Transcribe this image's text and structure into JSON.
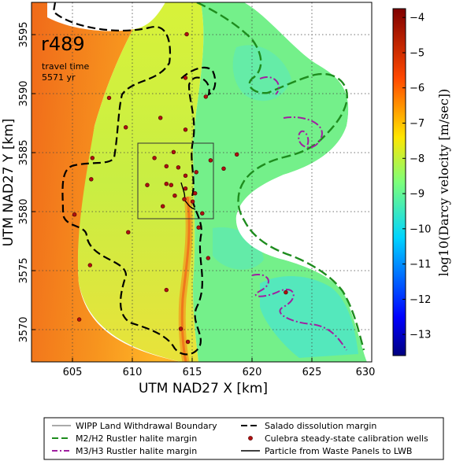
{
  "chart_data": {
    "type": "heatmap",
    "run_label": "r489",
    "annotation_line1": "travel time",
    "annotation_line2": "5571 yr",
    "xlabel": "UTM NAD27 X [km]",
    "ylabel": "UTM NAD27 Y [km]",
    "xlim": [
      601.5,
      630
    ],
    "ylim": [
      3566.5,
      3597
    ],
    "x_ticks": [
      605,
      610,
      615,
      620,
      625,
      630
    ],
    "y_ticks": [
      3570,
      3575,
      3580,
      3585,
      3590,
      3595
    ],
    "grid": true,
    "colorbar": {
      "label": "log10(Darcy velocity [m/sec])",
      "min": -13.6,
      "max": -3.75,
      "ticks": [
        -4,
        -5,
        -6,
        -7,
        -8,
        -9,
        -10,
        -11,
        -12,
        -13
      ]
    },
    "wipp_boundary": {
      "x0": 610.6,
      "x1": 616.9,
      "y0": 3578.7,
      "y1": 3585.1
    },
    "wells": [
      [
        614.5,
        3594.3
      ],
      [
        614.4,
        3590.6
      ],
      [
        608.0,
        3588.9
      ],
      [
        612.3,
        3587.2
      ],
      [
        614.4,
        3586.2
      ],
      [
        609.4,
        3586.4
      ],
      [
        606.6,
        3583.8
      ],
      [
        611.8,
        3583.8
      ],
      [
        613.4,
        3584.3
      ],
      [
        616.5,
        3583.6
      ],
      [
        617.6,
        3582.9
      ],
      [
        612.8,
        3583.1
      ],
      [
        614.4,
        3582.3
      ],
      [
        615.3,
        3582.6
      ],
      [
        612.8,
        3581.6
      ],
      [
        613.2,
        3581.5
      ],
      [
        614.4,
        3581.2
      ],
      [
        615.2,
        3580.8
      ],
      [
        613.5,
        3580.6
      ],
      [
        611.2,
        3581.5
      ],
      [
        614.3,
        3580.3
      ],
      [
        615.0,
        3580.1
      ],
      [
        612.5,
        3579.7
      ],
      [
        618.7,
        3584.1
      ],
      [
        606.5,
        3582.0
      ],
      [
        605.1,
        3579.0
      ],
      [
        615.5,
        3577.9
      ],
      [
        609.6,
        3577.5
      ],
      [
        616.3,
        3575.3
      ],
      [
        606.4,
        3574.7
      ],
      [
        612.8,
        3572.6
      ],
      [
        622.8,
        3572.4
      ],
      [
        605.5,
        3570.1
      ],
      [
        614.0,
        3569.3
      ],
      [
        614.6,
        3568.2
      ],
      [
        615.8,
        3579.1
      ],
      [
        613.8,
        3583.0
      ],
      [
        616.1,
        3589.0
      ]
    ],
    "legend": [
      {
        "label": "WIPP Land Withdrawal Boundary",
        "style": "thin-solid",
        "color": "#555555"
      },
      {
        "label": "Salado dissolution margin",
        "style": "dashed",
        "color": "#000000"
      },
      {
        "label": "M2/H2 Rustler halite margin",
        "style": "dashed",
        "color": "#1e8c1e"
      },
      {
        "label": "Culebra steady-state calibration wells",
        "style": "marker",
        "color": "#b01010"
      },
      {
        "label": "M3/H3 Rustler halite margin",
        "style": "dash-dot",
        "color": "#a020a0"
      },
      {
        "label": "Particle from Waste Panels to LWB",
        "style": "solid",
        "color": "#000000"
      }
    ]
  }
}
